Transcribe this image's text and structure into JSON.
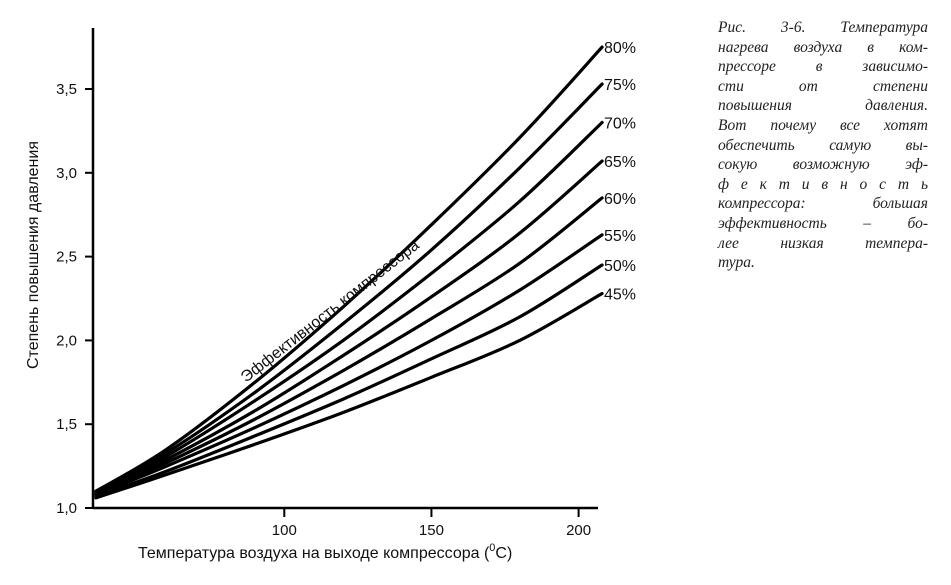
{
  "chart_data": {
    "type": "line",
    "ylabel": "Степень повышения давления",
    "xlabel": "Температура воздуха на выходе компрессора (°C)",
    "xlabel_parts": {
      "before": "Температура воздуха на выходе компрессора (",
      "sup": "0",
      "after": "C)"
    },
    "xlim": [
      35,
      210
    ],
    "ylim": [
      1.0,
      3.9
    ],
    "x_ticks": [
      100,
      150,
      200
    ],
    "x_tick_labels": [
      "100",
      "150",
      "200"
    ],
    "y_ticks": [
      1.0,
      1.5,
      2.0,
      2.5,
      3.0,
      3.5
    ],
    "y_tick_labels": [
      "1,0",
      "1,5",
      "2,0",
      "2,5",
      "3,0",
      "3,5"
    ],
    "annotation": "Эффективность компрессора",
    "grid": false,
    "series": [
      {
        "name": "80%",
        "x": [
          36,
          60,
          90,
          120,
          150,
          180,
          208
        ],
        "y": [
          1.1,
          1.35,
          1.75,
          2.2,
          2.69,
          3.21,
          3.75
        ]
      },
      {
        "name": "75%",
        "x": [
          36,
          60,
          90,
          120,
          150,
          180,
          208
        ],
        "y": [
          1.1,
          1.33,
          1.69,
          2.1,
          2.54,
          3.03,
          3.53
        ]
      },
      {
        "name": "70%",
        "x": [
          36,
          60,
          90,
          120,
          150,
          180,
          208
        ],
        "y": [
          1.09,
          1.31,
          1.64,
          2.0,
          2.4,
          2.83,
          3.3
        ]
      },
      {
        "name": "65%",
        "x": [
          36,
          60,
          90,
          120,
          150,
          180,
          208
        ],
        "y": [
          1.09,
          1.29,
          1.58,
          1.91,
          2.26,
          2.64,
          3.07
        ]
      },
      {
        "name": "60%",
        "x": [
          36,
          60,
          90,
          120,
          150,
          180,
          208
        ],
        "y": [
          1.08,
          1.27,
          1.53,
          1.82,
          2.13,
          2.46,
          2.85
        ]
      },
      {
        "name": "55%",
        "x": [
          36,
          60,
          90,
          120,
          150,
          180,
          208
        ],
        "y": [
          1.08,
          1.25,
          1.48,
          1.73,
          2.0,
          2.3,
          2.63
        ]
      },
      {
        "name": "50%",
        "x": [
          36,
          60,
          90,
          120,
          150,
          180,
          208
        ],
        "y": [
          1.07,
          1.22,
          1.43,
          1.65,
          1.89,
          2.14,
          2.45
        ]
      },
      {
        "name": "45%",
        "x": [
          36,
          60,
          90,
          120,
          150,
          180,
          208
        ],
        "y": [
          1.06,
          1.2,
          1.38,
          1.57,
          1.78,
          2.0,
          2.28
        ]
      }
    ]
  },
  "caption": {
    "lines": [
      "Рис. 3-6. Температура",
      "нагрева воздуха в ком-",
      "прессоре в зависимо-",
      "сти от степени",
      "повышения давления.",
      "Вот почему все хотят",
      "обеспечить самую вы-",
      "сокую возможную эф-",
      "ф е к т и в н о с т ь",
      "компрессора: большая",
      "эффективность – бо-",
      "лее низкая темпера-",
      "тура."
    ]
  }
}
